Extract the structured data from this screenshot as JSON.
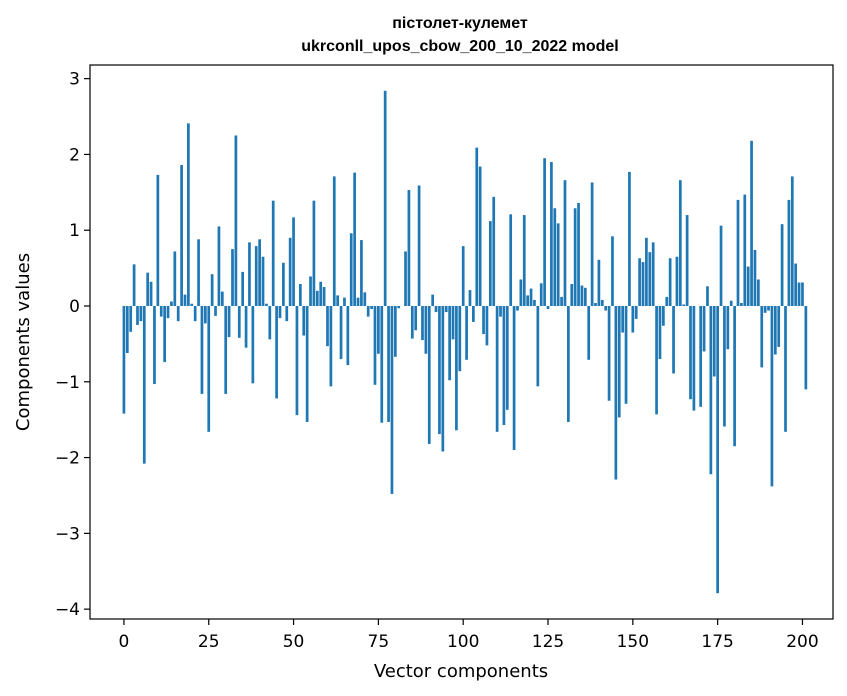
{
  "chart_data": {
    "type": "bar",
    "title_line1": "пістолет-кулемет",
    "title_line2": "ukrconll_upos_cbow_200_10_2022 model",
    "xlabel": "Vector components",
    "ylabel": "Components values",
    "xlim": [
      -10,
      209
    ],
    "ylim": [
      -4.13,
      3.18
    ],
    "xticks": [
      0,
      25,
      50,
      75,
      100,
      125,
      150,
      175,
      200
    ],
    "xtick_labels": [
      "0",
      "25",
      "50",
      "75",
      "100",
      "125",
      "150",
      "175",
      "200"
    ],
    "yticks": [
      -4,
      -3,
      -2,
      -1,
      0,
      1,
      2,
      3
    ],
    "ytick_labels": [
      "−4",
      "−3",
      "−2",
      "−1",
      "0",
      "1",
      "2",
      "3"
    ],
    "bar_color": "#1f77b4",
    "grid": false,
    "values": [
      -1.42,
      -0.62,
      -0.34,
      0.55,
      -0.25,
      -0.2,
      -2.08,
      0.44,
      0.32,
      -1.03,
      1.73,
      -0.14,
      -0.74,
      -0.16,
      0.06,
      0.72,
      -0.2,
      1.86,
      0.15,
      2.41,
      0.03,
      -0.2,
      0.88,
      -1.16,
      -0.23,
      -1.66,
      0.42,
      -0.13,
      1.05,
      0.19,
      -1.16,
      -0.41,
      0.75,
      2.25,
      -0.42,
      0.45,
      -0.55,
      0.84,
      -1.02,
      0.79,
      0.88,
      0.65,
      0.03,
      -0.44,
      1.39,
      -1.22,
      -0.16,
      0.57,
      -0.2,
      0.9,
      1.17,
      -1.44,
      0.29,
      -0.39,
      -1.53,
      0.39,
      1.39,
      0.2,
      0.32,
      0.25,
      -0.53,
      -1.06,
      1.71,
      0.14,
      -0.7,
      0.11,
      -0.78,
      0.96,
      1.76,
      0.11,
      0.87,
      0.18,
      -0.14,
      -0.04,
      -1.04,
      -0.63,
      -1.54,
      2.84,
      -1.53,
      -2.48,
      -0.67,
      -0.03,
      0.0,
      0.72,
      1.53,
      -0.43,
      -0.32,
      1.59,
      -0.45,
      -0.63,
      -1.82,
      0.15,
      -0.08,
      -1.69,
      -1.92,
      -0.08,
      -0.98,
      -0.44,
      -1.64,
      -0.86,
      0.79,
      -0.71,
      0.21,
      -0.21,
      2.09,
      1.84,
      -0.37,
      -0.52,
      1.12,
      1.44,
      -1.66,
      -0.14,
      -1.57,
      -1.37,
      1.21,
      -1.9,
      -0.06,
      0.35,
      1.2,
      0.14,
      0.23,
      0.08,
      -1.06,
      0.3,
      1.95,
      -0.04,
      1.9,
      1.29,
      1.09,
      0.12,
      1.66,
      -1.53,
      0.29,
      1.29,
      1.36,
      0.27,
      0.24,
      -0.71,
      1.63,
      0.04,
      0.61,
      0.08,
      -0.06,
      -1.25,
      0.92,
      -2.29,
      -1.47,
      -0.35,
      -1.29,
      1.77,
      -0.35,
      -0.17,
      0.63,
      0.58,
      0.9,
      0.71,
      0.84,
      -1.43,
      -0.7,
      -0.26,
      0.12,
      0.63,
      -0.89,
      0.65,
      1.66,
      0.02,
      1.2,
      -1.23,
      -1.38,
      0.0,
      -1.33,
      -0.6,
      0.26,
      -2.22,
      -0.93,
      -3.79,
      1.06,
      -1.59,
      -0.57,
      0.07,
      -1.85,
      1.4,
      0.04,
      1.47,
      0.52,
      2.18,
      0.74,
      0.35,
      -0.81,
      -0.09,
      -0.06,
      -2.38,
      -0.64,
      -0.54,
      1.08,
      -1.66,
      1.4,
      1.71,
      0.56,
      0.31,
      0.31,
      -1.1
    ]
  }
}
